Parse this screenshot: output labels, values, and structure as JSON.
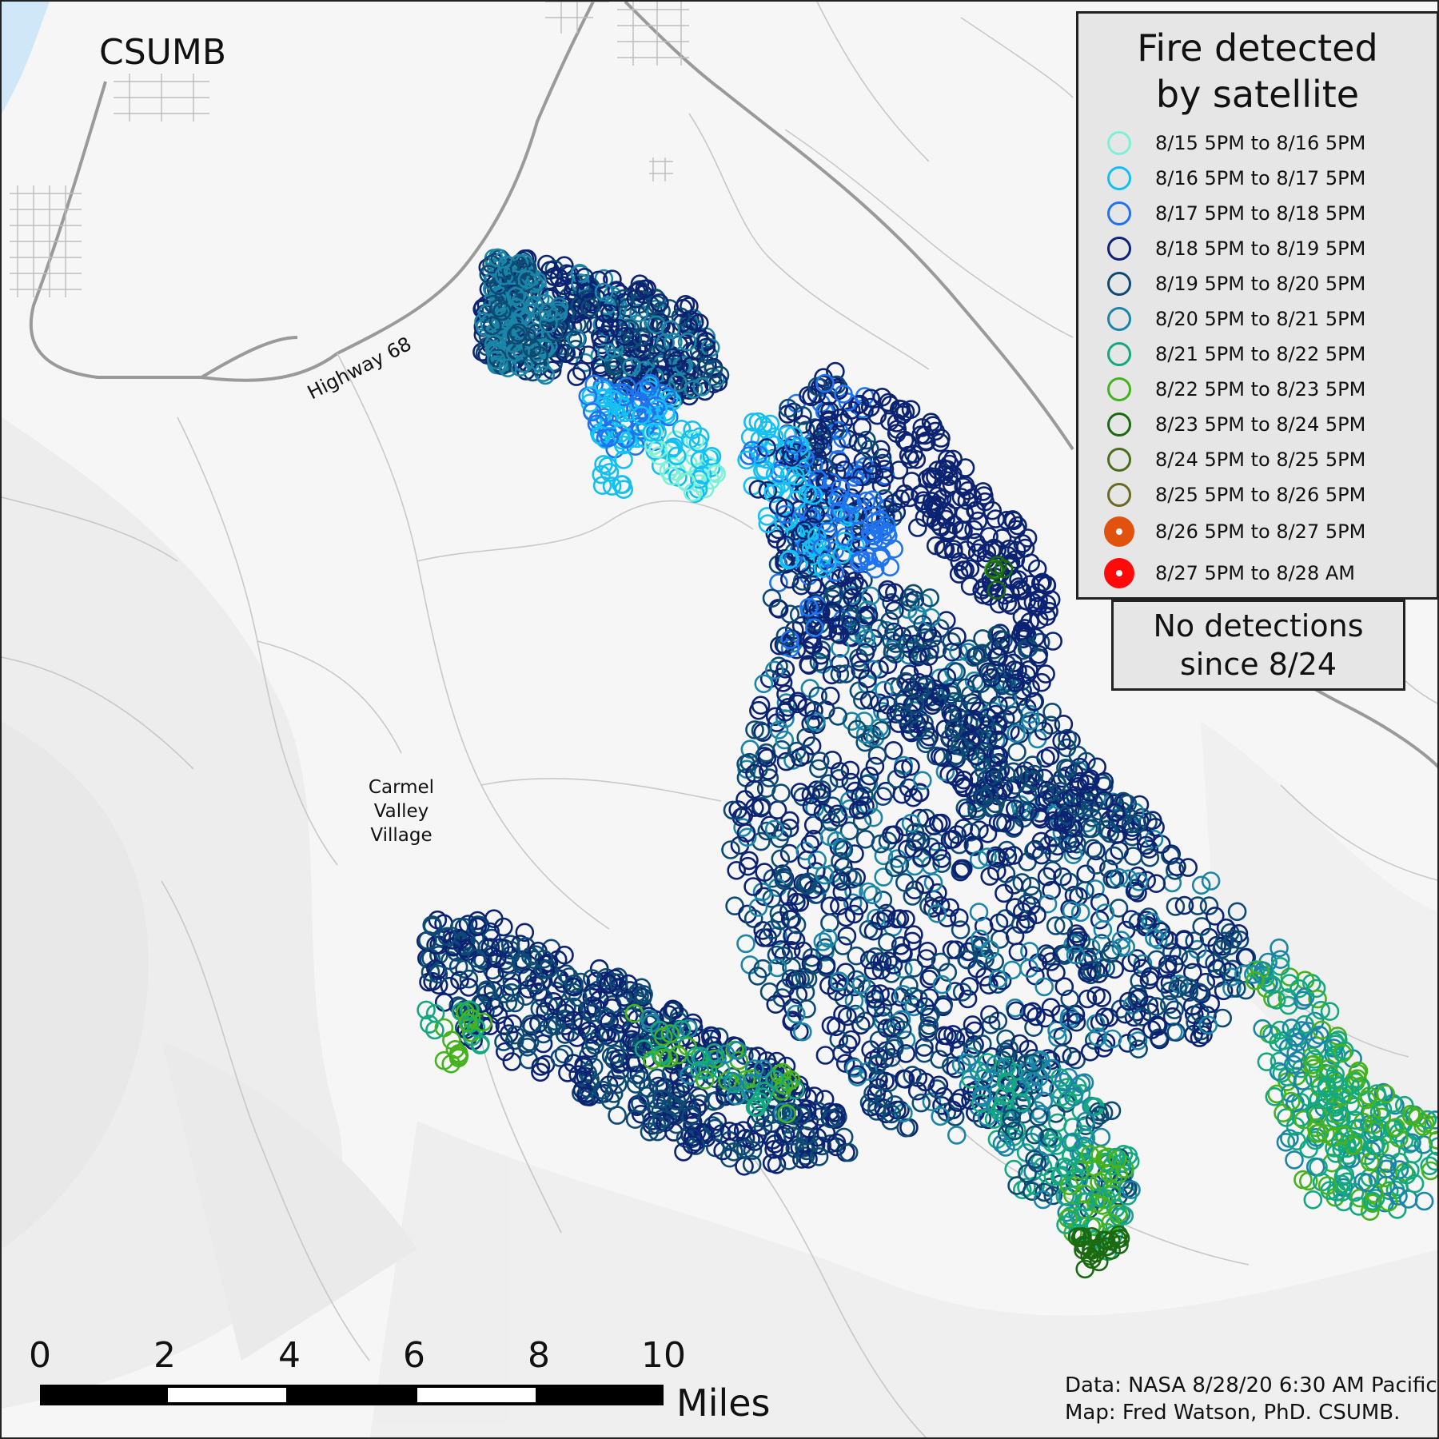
{
  "map": {
    "places": {
      "csumb": "CSUMB",
      "carmel_valley_village": [
        "Carmel",
        "Valley",
        "Village"
      ],
      "highway": "Highway 68"
    }
  },
  "legend": {
    "title_lines": [
      "Fire detected",
      "by satellite"
    ],
    "items": [
      {
        "label": "8/15 5PM to 8/16 5PM",
        "color": "#7ff0d8",
        "style": "ring"
      },
      {
        "label": "8/16 5PM to 8/17 5PM",
        "color": "#14c0f2",
        "style": "ring"
      },
      {
        "label": "8/17 5PM to 8/18 5PM",
        "color": "#1f73ee",
        "style": "ring"
      },
      {
        "label": "8/18 5PM to 8/19 5PM",
        "color": "#0b2372",
        "style": "ring"
      },
      {
        "label": "8/19 5PM to 8/20 5PM",
        "color": "#0c4a74",
        "style": "ring"
      },
      {
        "label": "8/20 5PM to 8/21 5PM",
        "color": "#1a85a6",
        "style": "ring"
      },
      {
        "label": "8/21 5PM to 8/22 5PM",
        "color": "#14a880",
        "style": "ring"
      },
      {
        "label": "8/22 5PM to 8/23 5PM",
        "color": "#45b21e",
        "style": "ring"
      },
      {
        "label": "8/23 5PM to 8/24 5PM",
        "color": "#1b6a12",
        "style": "ring"
      },
      {
        "label": "8/24 5PM to 8/25 5PM",
        "color": "#4b6e1e",
        "style": "ring"
      },
      {
        "label": "8/25 5PM to 8/26 5PM",
        "color": "#6b6a22",
        "style": "ring"
      },
      {
        "label": "8/26 5PM to 8/27 5PM",
        "color": "#e0520e",
        "style": "filled"
      },
      {
        "label": "8/27 5PM to 8/28 AM",
        "color": "#ff0a0a",
        "style": "filled"
      }
    ]
  },
  "status_box": {
    "lines": [
      "No detections",
      "since 8/24"
    ]
  },
  "scale_bar": {
    "ticks": [
      "0",
      "2",
      "4",
      "6",
      "8",
      "10"
    ],
    "unit": "Miles"
  },
  "credits": {
    "data": "Data: NASA 8/28/20 6:30 AM Pacific.",
    "map": "Map: Fred Watson, PhD. CSUMB."
  }
}
